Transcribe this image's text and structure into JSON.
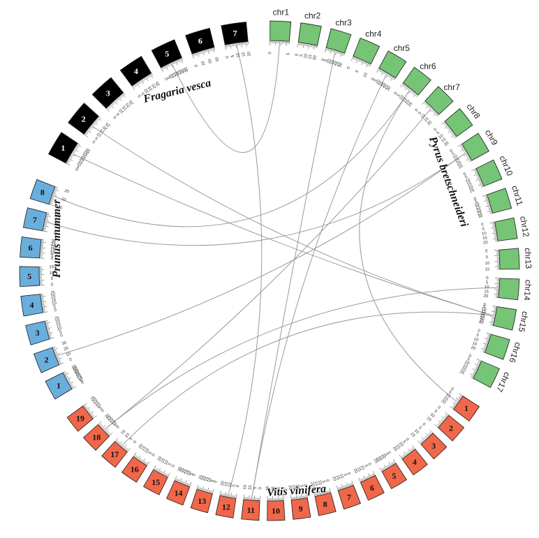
{
  "colors": {
    "fragaria": "#000000",
    "pyrus": "#76c475",
    "vitis": "#f0674a",
    "prunus": "#6aaedc",
    "links": "#9a9a9a"
  },
  "species": [
    {
      "name": "Fragaria vesca",
      "color_key": "fragaria",
      "label_type": "number",
      "chromosomes": [
        {
          "label": "1",
          "ticks": "0 5 10 15 20 25 30 35"
        },
        {
          "label": "2",
          "ticks": "0 5 10 15 20 25"
        },
        {
          "label": "3",
          "ticks": "0 5 10 15 20 25"
        },
        {
          "label": "4",
          "ticks": "0 5 10 15 20 25"
        },
        {
          "label": "5",
          "ticks": "0 5 10 15 20 25 30 35 40"
        },
        {
          "label": "6",
          "ticks": "0 10 20 30"
        },
        {
          "label": "7",
          "ticks": "0 5 10 15 20"
        }
      ]
    },
    {
      "name": "Pyrus bretschneideri",
      "color_key": "pyrus",
      "label_type": "name",
      "chromosomes": [
        {
          "label": "chr1",
          "ticks": "0 5"
        },
        {
          "label": "chr2",
          "ticks": "0 5 10 15 20"
        },
        {
          "label": "chr3",
          "ticks": "0 5 10 15 20 25 30"
        },
        {
          "label": "chr4",
          "ticks": "0 5 10"
        },
        {
          "label": "chr5",
          "ticks": "0 5 10 15 20 25 30"
        },
        {
          "label": "chr6",
          "ticks": "0 5 10 15 20 25"
        },
        {
          "label": "chr7",
          "ticks": "0 5 10 15 20"
        },
        {
          "label": "chr8",
          "ticks": "0 5 10 15 20"
        },
        {
          "label": "chr9",
          "ticks": "0 5 10 15 20 25"
        },
        {
          "label": "chr10",
          "ticks": "0 5 10 15 20 25"
        },
        {
          "label": "chr11",
          "ticks": "0 5 10 15 20 25 30"
        },
        {
          "label": "chr12",
          "ticks": "0 5 10 15 20"
        },
        {
          "label": "chr13",
          "ticks": "0 5 10 15"
        },
        {
          "label": "chr14",
          "ticks": "0 5 10 15 20"
        },
        {
          "label": "chr15",
          "ticks": "0 5 10 15 20 25 30 35 40"
        },
        {
          "label": "chr16",
          "ticks": "0 5 10 15 20"
        },
        {
          "label": "chr17",
          "ticks": "0 5 10 15 20 25"
        }
      ]
    },
    {
      "name": "Vitis vinifera",
      "color_key": "vitis",
      "label_type": "number",
      "chromosomes": [
        {
          "label": "1",
          "ticks": "0 5 10 15 20"
        },
        {
          "label": "2",
          "ticks": "0 5 10 15"
        },
        {
          "label": "3",
          "ticks": "0 5 10 15"
        },
        {
          "label": "4",
          "ticks": "0 5 10 15 20"
        },
        {
          "label": "5",
          "ticks": "0 5 10 15 20 25"
        },
        {
          "label": "6",
          "ticks": "0 5 10 15 20"
        },
        {
          "label": "7",
          "ticks": "0 5 10 15 20"
        },
        {
          "label": "8",
          "ticks": "0 5 10 15 20"
        },
        {
          "label": "9",
          "ticks": "0 5 10 15 20"
        },
        {
          "label": "10",
          "ticks": "0 5 10 15"
        },
        {
          "label": "11",
          "ticks": "0 5 10 15"
        },
        {
          "label": "12",
          "ticks": "0 5 10 15 20"
        },
        {
          "label": "13",
          "ticks": "0 5 10 15 20 25"
        },
        {
          "label": "14",
          "ticks": "0 5 10 15 20 25 30"
        },
        {
          "label": "15",
          "ticks": "0 5 10 15 20"
        },
        {
          "label": "16",
          "ticks": "0 5 10 15 20"
        },
        {
          "label": "17",
          "ticks": "0 5 10 15"
        },
        {
          "label": "18",
          "ticks": "0 5 10 15 20 25 30"
        },
        {
          "label": "19",
          "ticks": "0 5 10 15 20 25"
        }
      ]
    },
    {
      "name": "Prunus mummer",
      "color_key": "prunus",
      "label_type": "number",
      "chromosomes": [
        {
          "label": "1",
          "ticks": "0 5 10 15 20 25 30 35 40 45"
        },
        {
          "label": "2",
          "ticks": "0 10 20 30"
        },
        {
          "label": "3",
          "ticks": "0 5 10 15 20 25"
        },
        {
          "label": "4",
          "ticks": "0 5 10 15 20 25"
        },
        {
          "label": "5",
          "ticks": "0 5 10 15"
        },
        {
          "label": "6",
          "ticks": "0 5 10 15 20 25 30"
        },
        {
          "label": "7",
          "ticks": "0 10 20"
        },
        {
          "label": "8",
          "ticks": "0 10 20"
        }
      ]
    }
  ],
  "links": [
    {
      "from": [
        "Fragaria vesca",
        "1"
      ],
      "to": [
        "Pyrus bretschneideri",
        "chr15"
      ]
    },
    {
      "from": [
        "Fragaria vesca",
        "5"
      ],
      "to": [
        "Pyrus bretschneideri",
        "chr1"
      ]
    },
    {
      "from": [
        "Fragaria vesca",
        "7"
      ],
      "to": [
        "Vitis vinifera",
        "12"
      ]
    },
    {
      "from": [
        "Prunus mummer",
        "8"
      ],
      "to": [
        "Pyrus bretschneideri",
        "chr6"
      ]
    },
    {
      "from": [
        "Prunus mummer",
        "7"
      ],
      "to": [
        "Pyrus bretschneideri",
        "chr9"
      ]
    },
    {
      "from": [
        "Prunus mummer",
        "2"
      ],
      "to": [
        "Pyrus bretschneideri",
        "chr9"
      ]
    },
    {
      "from": [
        "Pyrus bretschneideri",
        "chr3"
      ],
      "to": [
        "Vitis vinifera",
        "11"
      ]
    },
    {
      "from": [
        "Pyrus bretschneideri",
        "chr5"
      ],
      "to": [
        "Vitis vinifera",
        "11"
      ]
    },
    {
      "from": [
        "Pyrus bretschneideri",
        "chr7"
      ],
      "to": [
        "Vitis vinifera",
        "18"
      ]
    },
    {
      "from": [
        "Pyrus bretschneideri",
        "chr6"
      ],
      "to": [
        "Vitis vinifera",
        "1"
      ]
    },
    {
      "from": [
        "Pyrus bretschneideri",
        "chr15"
      ],
      "to": [
        "Vitis vinifera",
        "17"
      ]
    },
    {
      "from": [
        "Pyrus bretschneideri",
        "chr14"
      ],
      "to": [
        "Vitis vinifera",
        "18"
      ]
    },
    {
      "from": [
        "Fragaria vesca",
        "2"
      ],
      "to": [
        "Pyrus bretschneideri",
        "chr15"
      ]
    }
  ]
}
